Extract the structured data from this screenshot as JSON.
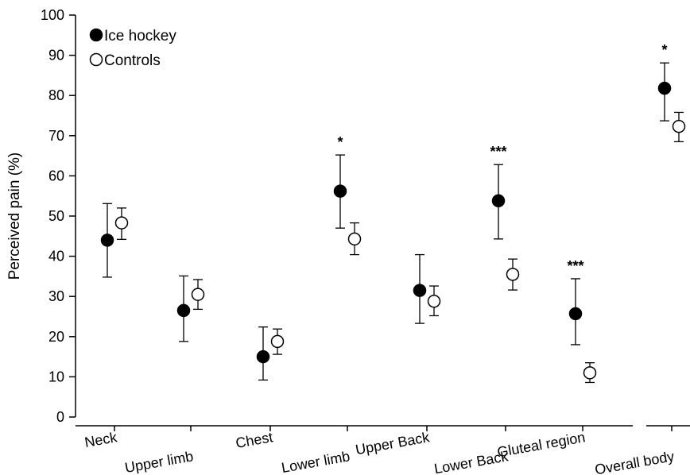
{
  "chart_data": {
    "type": "scatter",
    "ylabel": "Perceived pain (%)",
    "xlabel": "",
    "ylim": [
      0,
      100
    ],
    "yticks": [
      0,
      10,
      20,
      30,
      40,
      50,
      60,
      70,
      80,
      90,
      100
    ],
    "categories": [
      "Neck",
      "Upper limb",
      "Chest",
      "Lower limb",
      "Upper Back",
      "Lower Back",
      "Gluteal region",
      "Overall body"
    ],
    "legend_position": "top-left",
    "series": [
      {
        "name": "Ice hockey",
        "marker": "filled-circle",
        "color": "#000000",
        "values": [
          44,
          26.5,
          15,
          56.2,
          31.5,
          53.8,
          25.7,
          81.8
        ],
        "err_low": [
          34.8,
          18.8,
          9.2,
          47.0,
          23.3,
          44.3,
          18.0,
          73.7
        ],
        "err_high": [
          53.1,
          35.1,
          22.4,
          65.2,
          40.4,
          62.8,
          34.4,
          88.1
        ]
      },
      {
        "name": "Controls",
        "marker": "open-circle",
        "color": "#ffffff",
        "values": [
          48.3,
          30.5,
          18.8,
          44.3,
          28.8,
          35.5,
          11.0,
          72.3
        ],
        "err_low": [
          44.2,
          26.8,
          15.6,
          40.4,
          25.2,
          31.6,
          8.6,
          68.5
        ],
        "err_high": [
          52.0,
          34.2,
          21.9,
          48.3,
          32.6,
          39.3,
          13.5,
          75.8
        ]
      }
    ],
    "annotations": [
      "",
      "",
      "",
      "*",
      "",
      "***",
      "***",
      "*"
    ]
  }
}
